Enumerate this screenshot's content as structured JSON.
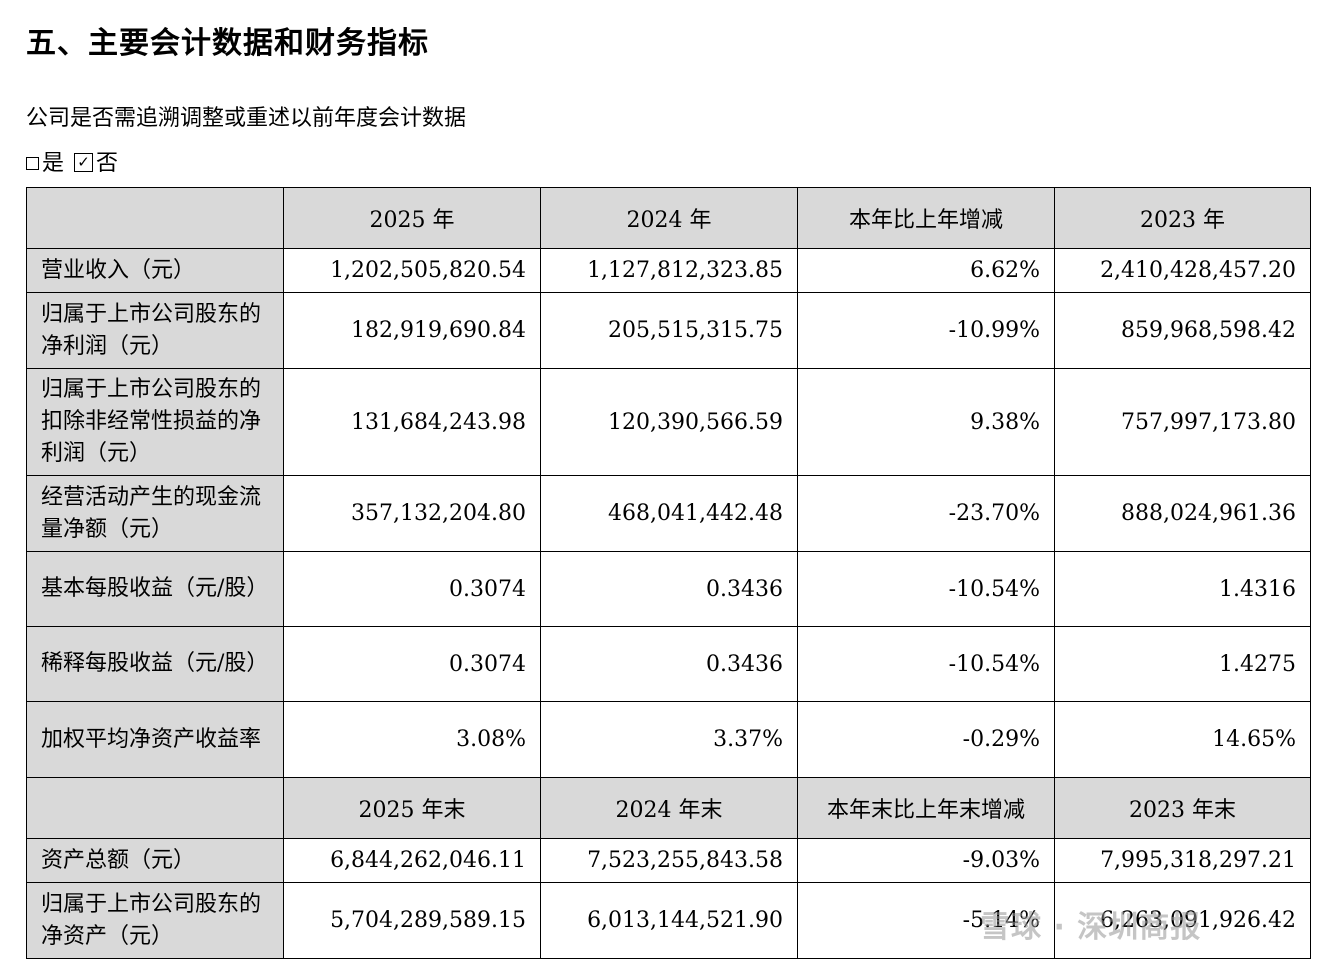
{
  "title": "五、主要会计数据和财务指标",
  "question": "公司是否需追溯调整或重述以前年度会计数据",
  "options": {
    "yes": "是",
    "no": "否",
    "checked": "no"
  },
  "header1": [
    "2025 年",
    "2024 年",
    "本年比上年增减",
    "2023 年"
  ],
  "rows1": [
    {
      "label": "营业收入（元）",
      "values": [
        "1,202,505,820.54",
        "1,127,812,323.85",
        "6.62%",
        "2,410,428,457.20"
      ]
    },
    {
      "label": "归属于上市公司股东的净利润（元）",
      "values": [
        "182,919,690.84",
        "205,515,315.75",
        "-10.99%",
        "859,968,598.42"
      ]
    },
    {
      "label": "归属于上市公司股东的扣除非经常性损益的净利润（元）",
      "values": [
        "131,684,243.98",
        "120,390,566.59",
        "9.38%",
        "757,997,173.80"
      ]
    },
    {
      "label": "经营活动产生的现金流量净额（元）",
      "values": [
        "357,132,204.80",
        "468,041,442.48",
        "-23.70%",
        "888,024,961.36"
      ]
    },
    {
      "label": "基本每股收益（元/股）",
      "values": [
        "0.3074",
        "0.3436",
        "-10.54%",
        "1.4316"
      ]
    },
    {
      "label": "稀释每股收益（元/股）",
      "values": [
        "0.3074",
        "0.3436",
        "-10.54%",
        "1.4275"
      ]
    },
    {
      "label": "加权平均净资产收益率",
      "values": [
        "3.08%",
        "3.37%",
        "-0.29%",
        "14.65%"
      ]
    }
  ],
  "header2": [
    "2025 年末",
    "2024 年末",
    "本年末比上年末增减",
    "2023 年末"
  ],
  "rows2": [
    {
      "label": "资产总额（元）",
      "values": [
        "6,844,262,046.11",
        "7,523,255,843.58",
        "-9.03%",
        "7,995,318,297.21"
      ]
    },
    {
      "label": "归属于上市公司股东的净资产（元）",
      "values": [
        "5,704,289,589.15",
        "6,013,144,521.90",
        "-5.14%",
        "6,263,091,926.42"
      ]
    }
  ],
  "watermark": "雪球 · 深圳商报"
}
